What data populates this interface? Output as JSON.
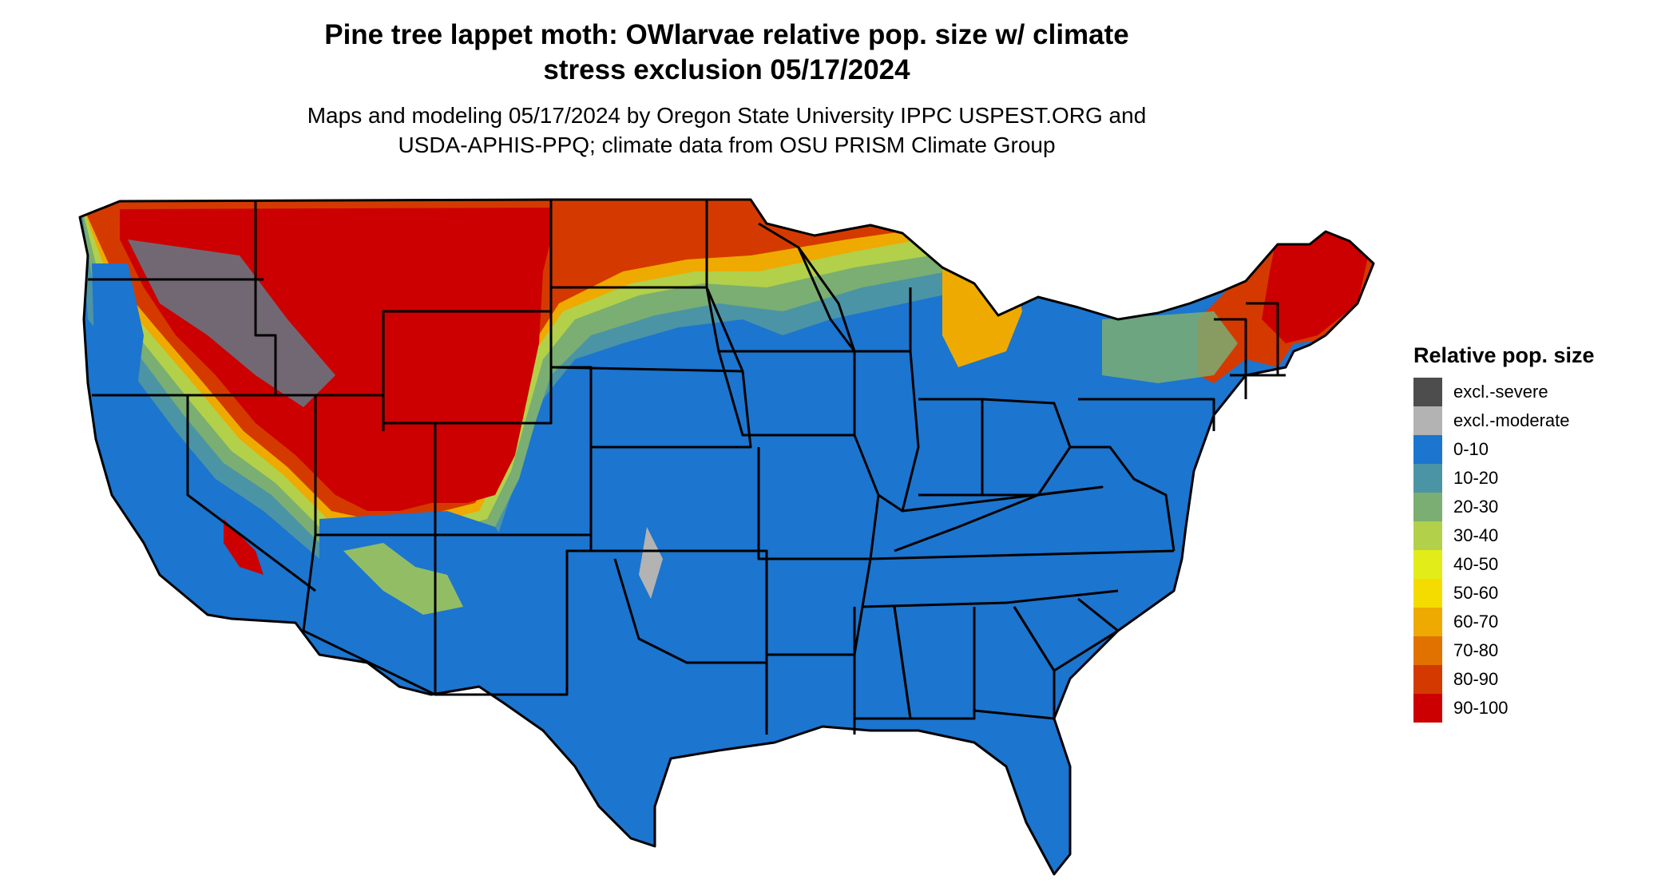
{
  "title_line1": "Pine tree lappet moth: OWlarvae relative pop. size w/ climate",
  "title_line2": "stress exclusion 05/17/2024",
  "subtitle_line1": "Maps and modeling 05/17/2024 by Oregon State University IPPC USPEST.ORG and",
  "subtitle_line2": "USDA-APHIS-PPQ; climate data from OSU PRISM Climate Group",
  "legend": {
    "title": "Relative pop. size",
    "items": [
      {
        "label": "excl.-severe",
        "color": "#4d4d4d"
      },
      {
        "label": "excl.-moderate",
        "color": "#b3b3b3"
      },
      {
        "label": "0-10",
        "color": "#1c75cf"
      },
      {
        "label": "10-20",
        "color": "#4b94a5"
      },
      {
        "label": "20-30",
        "color": "#7aae72"
      },
      {
        "label": "30-40",
        "color": "#b2d04a"
      },
      {
        "label": "40-50",
        "color": "#e2ec18"
      },
      {
        "label": "50-60",
        "color": "#f5dc00"
      },
      {
        "label": "60-70",
        "color": "#eeaa00"
      },
      {
        "label": "70-80",
        "color": "#e17200"
      },
      {
        "label": "80-90",
        "color": "#d43a00"
      },
      {
        "label": "90-100",
        "color": "#cc0000"
      }
    ]
  }
}
